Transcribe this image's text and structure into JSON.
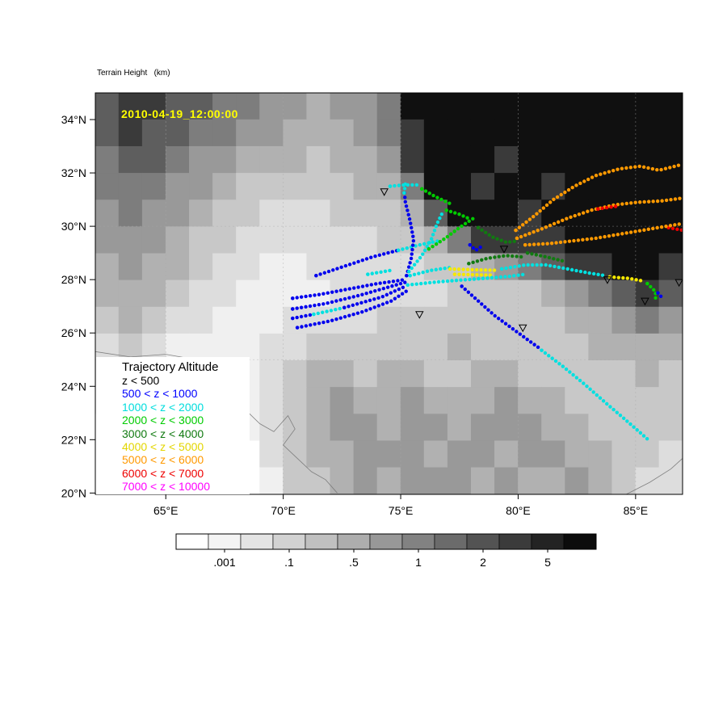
{
  "title": "Terrain Height   (km)",
  "timestamp": "2010-04-19_12:00:00",
  "colors": {
    "timestamp": "#ffff00",
    "frame": "#000000"
  },
  "legend": {
    "title": "Trajectory Altitude",
    "entries": [
      {
        "label": "z < 500",
        "color": "#000000"
      },
      {
        "label": "500 < z < 1000",
        "color": "#0000ff"
      },
      {
        "label": "1000 < z < 2000",
        "color": "#00dddd"
      },
      {
        "label": "2000 < z < 3000",
        "color": "#00cc00"
      },
      {
        "label": "3000 < z < 4000",
        "color": "#117a11"
      },
      {
        "label": "4000 < z < 5000",
        "color": "#e3d600"
      },
      {
        "label": "5000 < z < 6000",
        "color": "#ff9900"
      },
      {
        "label": "6000 < z < 7000",
        "color": "#ee0000"
      },
      {
        "label": "7000 < z < 10000",
        "color": "#ff00ff"
      }
    ]
  },
  "chart_data": {
    "type": "scatter",
    "title": "Terrain Height (km)",
    "map": {
      "lon_range": [
        62,
        87
      ],
      "lat_range": [
        19.95,
        35.0
      ]
    },
    "x_ticks": [
      {
        "lon": 65,
        "label": "65°E"
      },
      {
        "lon": 70,
        "label": "70°E"
      },
      {
        "lon": 75,
        "label": "75°E"
      },
      {
        "lon": 80,
        "label": "80°E"
      },
      {
        "lon": 85,
        "label": "85°E"
      }
    ],
    "y_ticks": [
      {
        "lat": 34,
        "label": "34°N"
      },
      {
        "lat": 32,
        "label": "32°N"
      },
      {
        "lat": 30,
        "label": "30°N"
      },
      {
        "lat": 28,
        "label": "28°N"
      },
      {
        "lat": 26,
        "label": "26°N"
      },
      {
        "lat": 24,
        "label": "24°N"
      },
      {
        "lat": 22,
        "label": "22°N"
      },
      {
        "lat": 20,
        "label": "20°N"
      }
    ],
    "gridlines": {
      "lons": [
        65,
        70,
        75,
        80,
        85
      ],
      "lats": [
        25,
        30
      ]
    },
    "terrain": {
      "palette": [
        "#ffffff",
        "#f0f0f0",
        "#dddddd",
        "#c8c8c8",
        "#b1b1b1",
        "#999999",
        "#7d7d7d",
        "#5e5e5e",
        "#3a3a3a",
        "#101010"
      ],
      "rows": [
        "7887766554556999999999999",
        "7877665544456899999999999",
        "6776554443445899989999999",
        "6665543333344699899899999",
        "5655433222333479998999999",
        "5554332222223346888899999",
        "4544322112222233456788998",
        "4443221111222223333456787",
        "3432211122223333333344565",
        "2321111223333334333334444",
        "2211011234434433443333343",
        "1100001234544544454433333",
        "0000001234554554555443333",
        "0000000234455545545544332",
        "0000000133454555454454322"
      ]
    },
    "coastlines": [
      [
        [
          62,
          25.3
        ],
        [
          63.5,
          25.1
        ],
        [
          65,
          25.2
        ],
        [
          66.3,
          25.0
        ],
        [
          67.3,
          24.6
        ],
        [
          68.0,
          23.9
        ],
        [
          68.3,
          23.2
        ],
        [
          69.0,
          22.6
        ],
        [
          69.6,
          22.3
        ],
        [
          70.2,
          22.9
        ],
        [
          70.5,
          22.4
        ],
        [
          70.0,
          21.8
        ],
        [
          70.6,
          21.3
        ],
        [
          71.2,
          20.8
        ],
        [
          71.8,
          20.5
        ],
        [
          72.3,
          20.0
        ]
      ],
      [
        [
          84.6,
          19.95
        ],
        [
          85.6,
          20.4
        ],
        [
          86.5,
          20.9
        ],
        [
          87.0,
          21.3
        ]
      ]
    ],
    "bands": {
      "black": "#000000",
      "blue": "#0000ee",
      "cyan": "#00e0e0",
      "green": "#00cc00",
      "dkgreen": "#117a11",
      "yellow": "#f5e800",
      "orange": "#ff9900",
      "red": "#ee0000",
      "magenta": "#ff00ff"
    },
    "trajectories": [
      {
        "band": "blue",
        "pts": [
          [
            70.4,
            27.3
          ],
          [
            71.6,
            27.45
          ],
          [
            72.8,
            27.65
          ],
          [
            74.0,
            27.85
          ],
          [
            75.2,
            28.0
          ]
        ]
      },
      {
        "band": "blue",
        "pts": [
          [
            70.4,
            26.9
          ],
          [
            71.8,
            27.1
          ],
          [
            73.2,
            27.4
          ],
          [
            74.4,
            27.7
          ],
          [
            75.2,
            27.9
          ]
        ]
      },
      {
        "band": "blue",
        "pts": [
          [
            70.4,
            26.55
          ],
          [
            71.3,
            26.7
          ]
        ]
      },
      {
        "band": "cyan",
        "pts": [
          [
            71.3,
            26.7
          ],
          [
            72.6,
            26.95
          ]
        ]
      },
      {
        "band": "blue",
        "pts": [
          [
            72.6,
            26.95
          ],
          [
            74.2,
            27.35
          ],
          [
            75.2,
            27.75
          ]
        ]
      },
      {
        "band": "blue",
        "pts": [
          [
            70.6,
            26.2
          ],
          [
            72.0,
            26.45
          ],
          [
            73.4,
            26.8
          ],
          [
            74.6,
            27.2
          ],
          [
            75.3,
            27.6
          ]
        ]
      },
      {
        "band": "blue",
        "pts": [
          [
            71.4,
            28.15
          ],
          [
            72.6,
            28.5
          ],
          [
            73.8,
            28.85
          ],
          [
            74.9,
            29.1
          ]
        ]
      },
      {
        "band": "cyan",
        "pts": [
          [
            74.9,
            29.1
          ],
          [
            75.8,
            29.3
          ],
          [
            76.6,
            29.45
          ]
        ]
      },
      {
        "band": "blue",
        "pts": [
          [
            75.25,
            28.15
          ],
          [
            75.45,
            28.8
          ],
          [
            75.55,
            29.5
          ],
          [
            75.4,
            30.2
          ],
          [
            75.2,
            30.9
          ],
          [
            75.15,
            31.35
          ]
        ]
      },
      {
        "band": "cyan",
        "pts": [
          [
            74.55,
            31.5
          ],
          [
            75.15,
            31.55
          ],
          [
            75.75,
            31.55
          ]
        ]
      },
      {
        "band": "cyan",
        "pts": [
          [
            75.15,
            31.25
          ],
          [
            75.2,
            31.62
          ]
        ]
      },
      {
        "band": "green",
        "pts": [
          [
            75.9,
            31.4
          ],
          [
            76.5,
            31.1
          ],
          [
            77.1,
            30.85
          ]
        ]
      },
      {
        "band": "cyan",
        "pts": [
          [
            75.35,
            28.3
          ],
          [
            75.9,
            28.9
          ],
          [
            76.3,
            29.5
          ],
          [
            76.55,
            30.1
          ],
          [
            76.8,
            30.55
          ]
        ]
      },
      {
        "band": "green",
        "pts": [
          [
            76.95,
            30.6
          ],
          [
            77.5,
            30.45
          ],
          [
            78.0,
            30.25
          ]
        ]
      },
      {
        "band": "green",
        "pts": [
          [
            76.2,
            29.15
          ],
          [
            76.9,
            29.55
          ],
          [
            77.5,
            29.95
          ],
          [
            78.1,
            30.3
          ]
        ]
      },
      {
        "band": "dkgreen",
        "pts": [
          [
            78.3,
            29.95
          ],
          [
            78.9,
            29.6
          ],
          [
            79.5,
            29.4
          ],
          [
            80.0,
            29.45
          ]
        ]
      },
      {
        "band": "blue",
        "pts": [
          [
            77.95,
            29.3
          ],
          [
            78.2,
            29.1
          ],
          [
            78.45,
            29.25
          ]
        ]
      },
      {
        "band": "cyan",
        "pts": [
          [
            75.4,
            28.15
          ],
          [
            76.3,
            28.35
          ],
          [
            77.1,
            28.45
          ]
        ]
      },
      {
        "band": "yellow",
        "pts": [
          [
            77.1,
            28.4
          ],
          [
            78.1,
            28.37
          ],
          [
            79.1,
            28.35
          ]
        ]
      },
      {
        "band": "yellow",
        "pts": [
          [
            77.3,
            28.2
          ],
          [
            78.2,
            28.18
          ],
          [
            79.0,
            28.17
          ]
        ]
      },
      {
        "band": "cyan",
        "pts": [
          [
            79.3,
            28.4
          ],
          [
            80.3,
            28.55
          ],
          [
            81.2,
            28.55
          ],
          [
            82.1,
            28.4
          ],
          [
            83.0,
            28.25
          ],
          [
            83.7,
            28.15
          ]
        ]
      },
      {
        "band": "yellow",
        "pts": [
          [
            83.9,
            28.1
          ],
          [
            84.7,
            28.05
          ],
          [
            85.3,
            27.95
          ]
        ]
      },
      {
        "band": "green",
        "pts": [
          [
            85.5,
            27.85
          ],
          [
            85.85,
            27.55
          ],
          [
            85.85,
            27.2
          ]
        ]
      },
      {
        "band": "blue",
        "pts": [
          [
            85.95,
            27.5
          ],
          [
            86.15,
            27.3
          ]
        ]
      },
      {
        "band": "cyan",
        "pts": [
          [
            75.3,
            27.8
          ],
          [
            76.4,
            27.9
          ],
          [
            77.5,
            27.98
          ],
          [
            78.6,
            28.05
          ],
          [
            79.6,
            28.12
          ],
          [
            80.3,
            28.2
          ]
        ]
      },
      {
        "band": "dkgreen",
        "pts": [
          [
            77.9,
            28.6
          ],
          [
            78.7,
            28.8
          ],
          [
            79.5,
            28.9
          ],
          [
            80.2,
            28.85
          ]
        ]
      },
      {
        "band": "dkgreen",
        "pts": [
          [
            80.4,
            29.0
          ],
          [
            81.2,
            28.85
          ],
          [
            81.9,
            28.7
          ]
        ]
      },
      {
        "band": "orange",
        "pts": [
          [
            79.9,
            29.85
          ],
          [
            80.7,
            30.4
          ],
          [
            81.5,
            31.0
          ],
          [
            82.4,
            31.5
          ],
          [
            83.3,
            31.9
          ],
          [
            84.3,
            32.15
          ],
          [
            85.2,
            32.25
          ],
          [
            86.0,
            32.1
          ],
          [
            86.9,
            32.3
          ]
        ]
      },
      {
        "band": "orange",
        "pts": [
          [
            79.95,
            29.55
          ],
          [
            81.0,
            29.9
          ],
          [
            82.1,
            30.3
          ],
          [
            83.1,
            30.6
          ],
          [
            84.1,
            30.8
          ],
          [
            85.1,
            30.9
          ],
          [
            86.1,
            30.95
          ],
          [
            86.95,
            31.05
          ]
        ]
      },
      {
        "band": "red",
        "pts": [
          [
            83.4,
            30.65
          ],
          [
            84.2,
            30.75
          ]
        ]
      },
      {
        "band": "red",
        "pts": [
          [
            86.4,
            29.95
          ],
          [
            87.0,
            29.85
          ]
        ]
      },
      {
        "band": "orange",
        "pts": [
          [
            80.3,
            29.3
          ],
          [
            81.3,
            29.35
          ],
          [
            82.3,
            29.45
          ],
          [
            83.3,
            29.55
          ],
          [
            84.3,
            29.7
          ],
          [
            85.3,
            29.85
          ],
          [
            86.3,
            30.0
          ],
          [
            87.0,
            30.1
          ]
        ]
      },
      {
        "band": "blue",
        "pts": [
          [
            77.6,
            27.75
          ],
          [
            78.3,
            27.2
          ],
          [
            79.0,
            26.65
          ],
          [
            79.7,
            26.2
          ],
          [
            80.4,
            25.75
          ],
          [
            80.95,
            25.4
          ]
        ]
      },
      {
        "band": "cyan",
        "pts": [
          [
            81.0,
            25.35
          ],
          [
            81.9,
            24.75
          ],
          [
            82.8,
            24.1
          ],
          [
            83.7,
            23.4
          ],
          [
            84.5,
            22.8
          ],
          [
            85.15,
            22.3
          ],
          [
            85.6,
            21.95
          ]
        ]
      },
      {
        "band": "cyan",
        "pts": [
          [
            73.6,
            28.2
          ],
          [
            74.6,
            28.35
          ]
        ]
      }
    ],
    "stations": [
      [
        74.3,
        31.3
      ],
      [
        75.8,
        26.7
      ],
      [
        79.4,
        29.15
      ],
      [
        80.2,
        26.2
      ],
      [
        83.8,
        28.0
      ],
      [
        85.4,
        27.2
      ],
      [
        86.85,
        27.9
      ]
    ],
    "colorbar": {
      "colors": [
        "#ffffff",
        "#f4f4f4",
        "#e4e4e4",
        "#d2d2d2",
        "#c0c0c0",
        "#adadad",
        "#989898",
        "#828282",
        "#6b6b6b",
        "#535353",
        "#3b3b3b",
        "#232323",
        "#0c0c0c"
      ],
      "labels": [
        ".001",
        ".1",
        ".5",
        "1",
        "2",
        "5"
      ]
    }
  }
}
